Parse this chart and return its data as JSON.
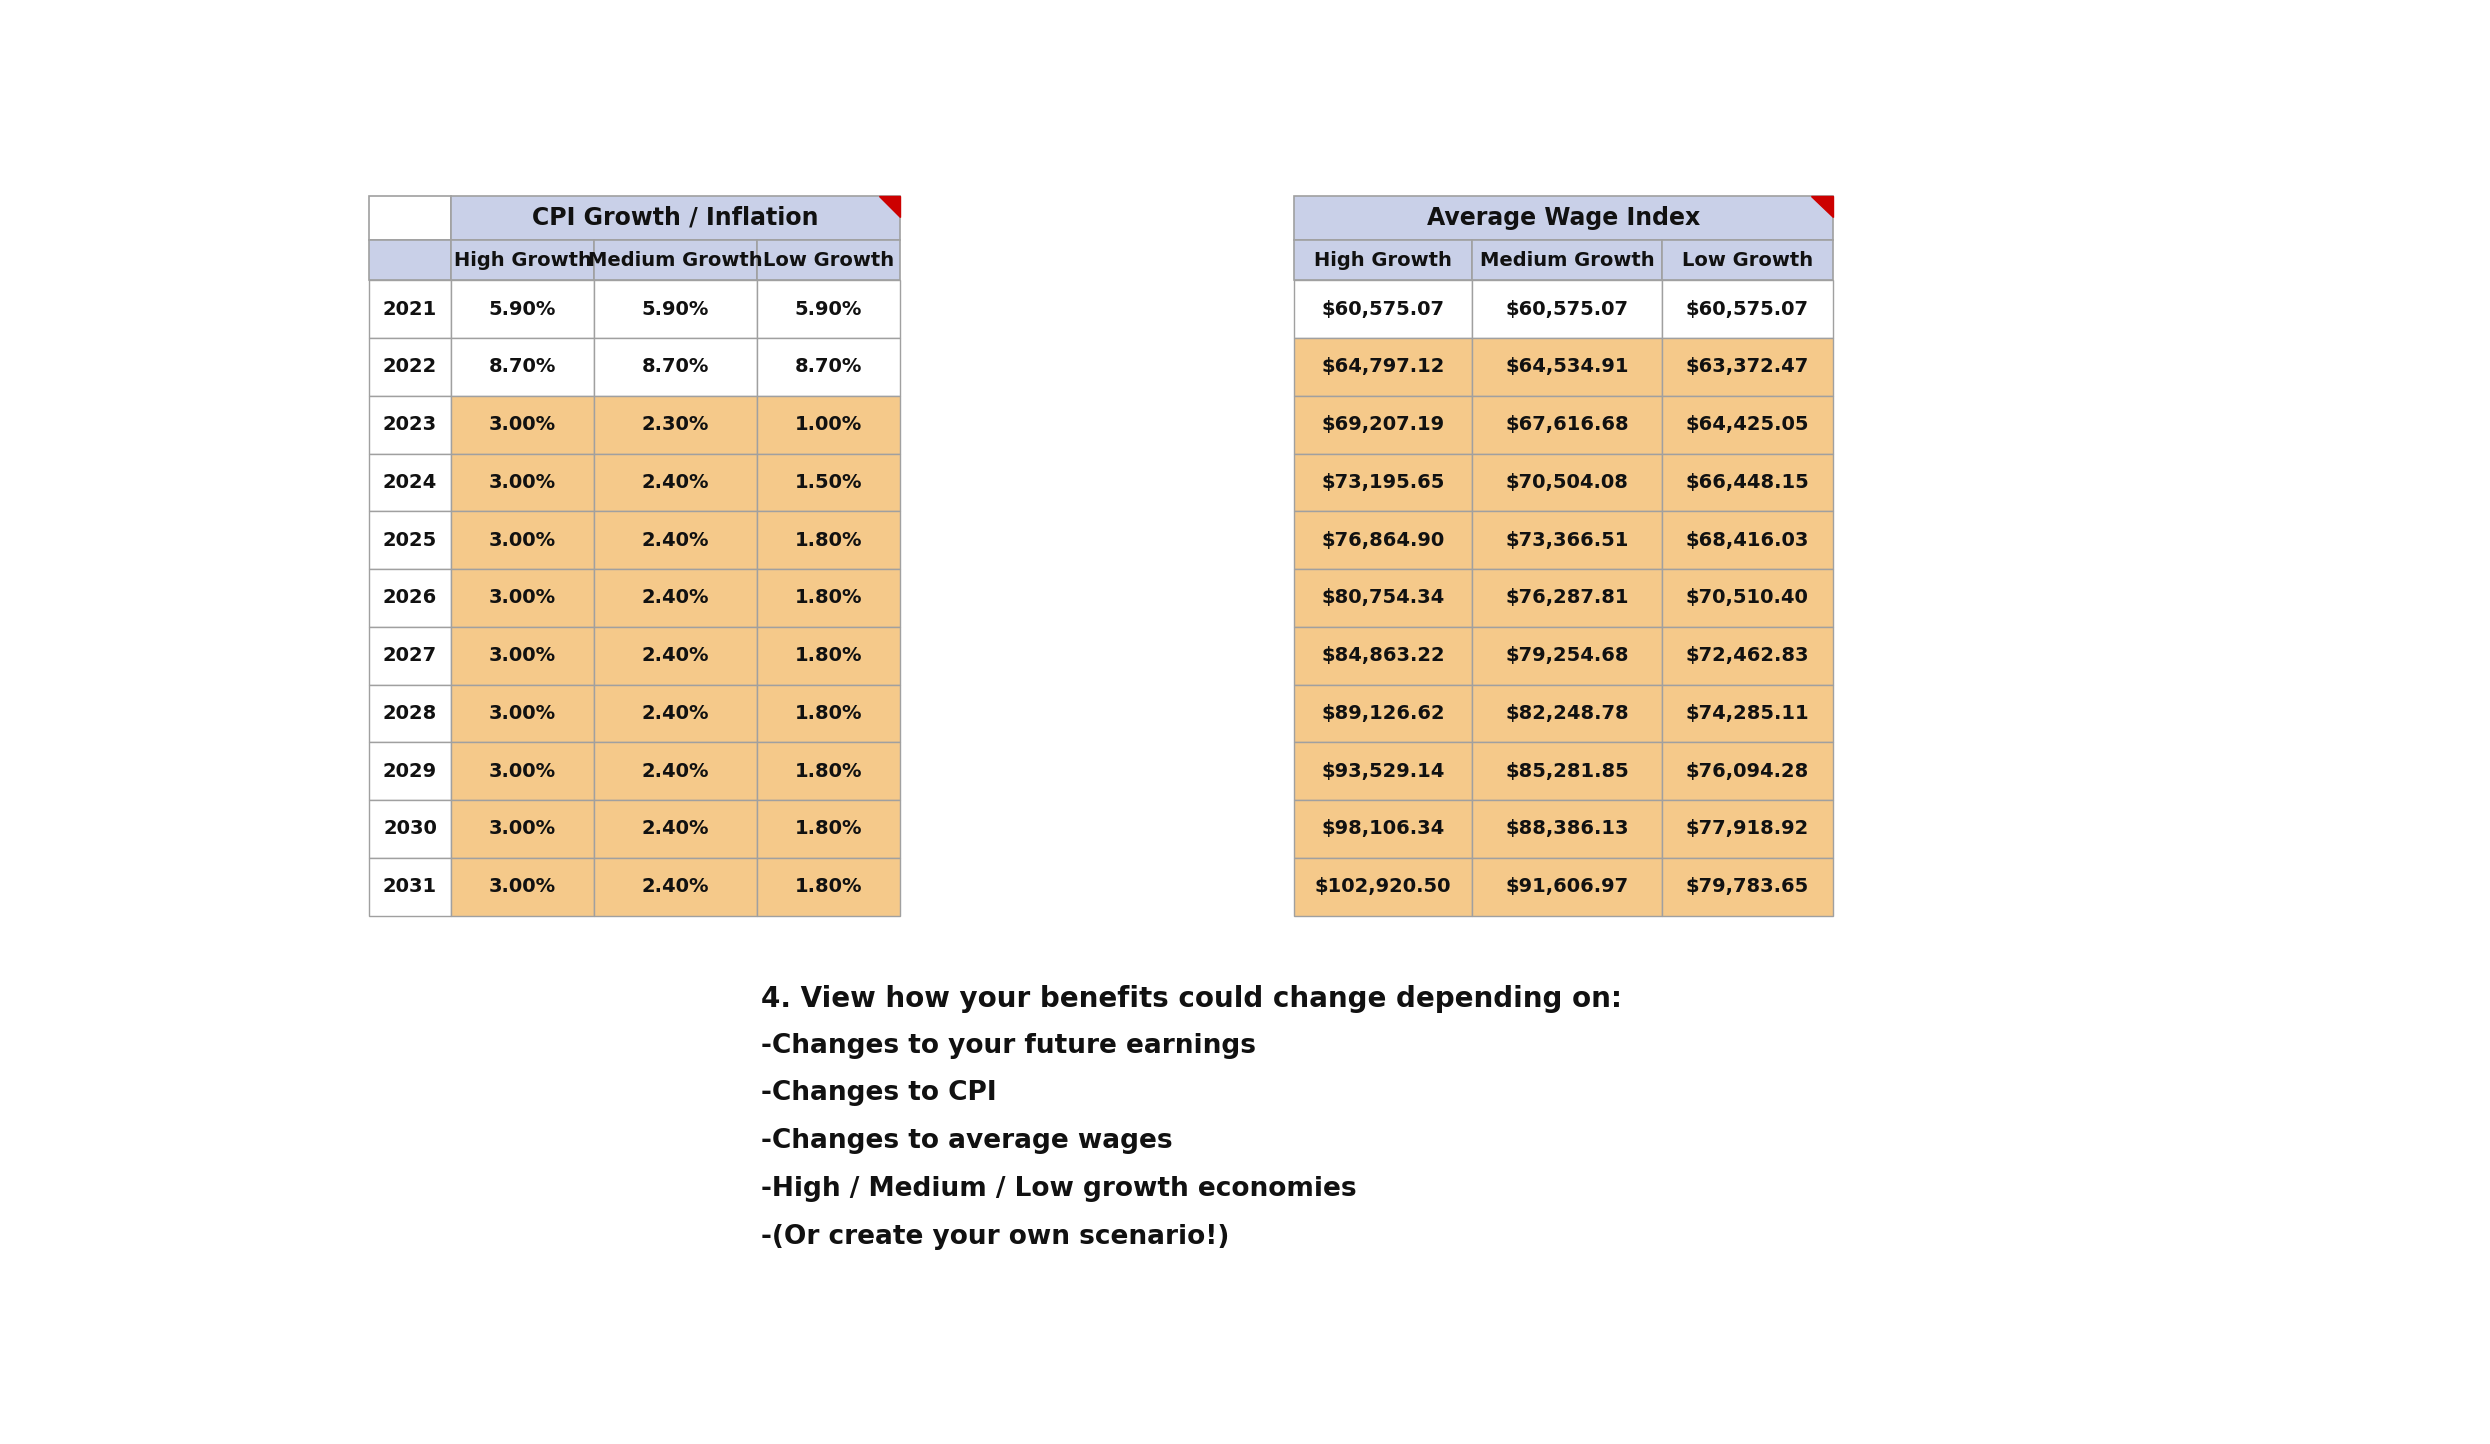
{
  "years": [
    "2021",
    "2022",
    "2023",
    "2024",
    "2025",
    "2026",
    "2027",
    "2028",
    "2029",
    "2030",
    "2031"
  ],
  "cpi_high": [
    "5.90%",
    "8.70%",
    "3.00%",
    "3.00%",
    "3.00%",
    "3.00%",
    "3.00%",
    "3.00%",
    "3.00%",
    "3.00%",
    "3.00%"
  ],
  "cpi_med": [
    "5.90%",
    "8.70%",
    "2.30%",
    "2.40%",
    "2.40%",
    "2.40%",
    "2.40%",
    "2.40%",
    "2.40%",
    "2.40%",
    "2.40%"
  ],
  "cpi_low": [
    "5.90%",
    "8.70%",
    "1.00%",
    "1.50%",
    "1.80%",
    "1.80%",
    "1.80%",
    "1.80%",
    "1.80%",
    "1.80%",
    "1.80%"
  ],
  "awi_high": [
    "$60,575.07",
    "$64,797.12",
    "$69,207.19",
    "$73,195.65",
    "$76,864.90",
    "$80,754.34",
    "$84,863.22",
    "$89,126.62",
    "$93,529.14",
    "$98,106.34",
    "$102,920.50"
  ],
  "awi_med": [
    "$60,575.07",
    "$64,534.91",
    "$67,616.68",
    "$70,504.08",
    "$73,366.51",
    "$76,287.81",
    "$79,254.68",
    "$82,248.78",
    "$85,281.85",
    "$88,386.13",
    "$91,606.97"
  ],
  "awi_low": [
    "$60,575.07",
    "$63,372.47",
    "$64,425.05",
    "$66,448.15",
    "$68,416.03",
    "$70,510.40",
    "$72,462.83",
    "$74,285.11",
    "$76,094.28",
    "$77,918.92",
    "$79,783.65"
  ],
  "header_bg": "#c9d0e8",
  "orange_bg": "#f5c98a",
  "white_bg": "#ffffff",
  "border_color": "#a0a0a0",
  "text_color": "#111111",
  "red_corner": "#cc0000",
  "cpi_title": "CPI Growth / Inflation",
  "awi_title": "Average Wage Index",
  "col_headers": [
    "High Growth",
    "Medium Growth",
    "Low Growth"
  ],
  "cpi_row_colors": [
    "#ffffff",
    "#ffffff",
    "#f5c98a",
    "#f5c98a",
    "#f5c98a",
    "#f5c98a",
    "#f5c98a",
    "#f5c98a",
    "#f5c98a",
    "#f5c98a",
    "#f5c98a"
  ],
  "awi_row_colors": [
    "#ffffff",
    "#f5c98a",
    "#f5c98a",
    "#f5c98a",
    "#f5c98a",
    "#f5c98a",
    "#f5c98a",
    "#f5c98a",
    "#f5c98a",
    "#f5c98a",
    "#f5c98a"
  ],
  "annotation_lines": [
    "4. View how your benefits could change depending on:",
    "-Changes to your future earnings",
    "-Changes to CPI",
    "-Changes to average wages",
    "-High / Medium / Low growth economies",
    "-(Or create your own scenario!)"
  ],
  "fig_width": 24.9,
  "fig_height": 14.44,
  "dpi": 100
}
